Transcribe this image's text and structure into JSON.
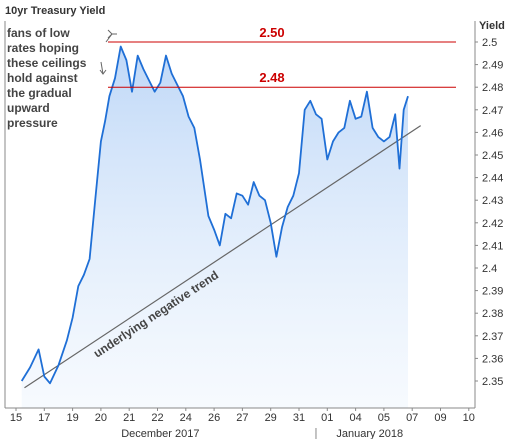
{
  "chart_data": {
    "type": "area",
    "title": "10yr Treasury Yield",
    "ylabel": "Yield",
    "x_ticks": [
      "15",
      "17",
      "19",
      "20",
      "21",
      "22",
      "24",
      "26",
      "27",
      "29",
      "31",
      "01",
      "04",
      "05",
      "07",
      "09",
      "10"
    ],
    "month_labels": [
      "December 2017",
      "January 2018"
    ],
    "y_ticks": [
      "2.35",
      "2.36",
      "2.37",
      "2.38",
      "2.39",
      "2.4",
      "2.41",
      "2.42",
      "2.43",
      "2.44",
      "2.45",
      "2.46",
      "2.47",
      "2.48",
      "2.49",
      "2.5"
    ],
    "ylim": [
      2.345,
      2.506
    ],
    "x_range": [
      0,
      16
    ],
    "series": [
      {
        "x": [
          0.2,
          0.5,
          0.8,
          1.0,
          1.2,
          1.5,
          1.8,
          2.0,
          2.2,
          2.4,
          2.6,
          2.8,
          3.0,
          3.15,
          3.3,
          3.5,
          3.7,
          3.9,
          4.1,
          4.3,
          4.5,
          4.7,
          4.9,
          5.1,
          5.3,
          5.5,
          5.7,
          5.9,
          6.1,
          6.3,
          6.5,
          6.8,
          7.0,
          7.2,
          7.4,
          7.6,
          7.8,
          8.0,
          8.2,
          8.4,
          8.6,
          8.8,
          9.0,
          9.2,
          9.4,
          9.6,
          9.8,
          10.0,
          10.2,
          10.4,
          10.6,
          10.8,
          11.0,
          11.2,
          11.4,
          11.6,
          11.8,
          12.0,
          12.2,
          12.4,
          12.6,
          12.8,
          13.0,
          13.2,
          13.4,
          13.55,
          13.7,
          13.85
        ],
        "values": [
          2.35,
          2.356,
          2.364,
          2.352,
          2.349,
          2.357,
          2.368,
          2.378,
          2.392,
          2.397,
          2.404,
          2.43,
          2.456,
          2.465,
          2.476,
          2.484,
          2.498,
          2.492,
          2.478,
          2.494,
          2.488,
          2.483,
          2.478,
          2.482,
          2.494,
          2.486,
          2.481,
          2.476,
          2.467,
          2.462,
          2.448,
          2.423,
          2.417,
          2.41,
          2.424,
          2.422,
          2.433,
          2.432,
          2.428,
          2.438,
          2.432,
          2.43,
          2.42,
          2.405,
          2.418,
          2.427,
          2.432,
          2.442,
          2.47,
          2.474,
          2.468,
          2.466,
          2.448,
          2.456,
          2.46,
          2.462,
          2.474,
          2.466,
          2.467,
          2.478,
          2.462,
          2.458,
          2.456,
          2.458,
          2.468,
          2.444,
          2.47,
          2.476
        ],
        "color": "#1f6fd6"
      }
    ],
    "levels": [
      {
        "value": 2.5,
        "label": "2.50",
        "color": "#cc0000"
      },
      {
        "value": 2.48,
        "label": "2.48",
        "color": "#cc0000"
      }
    ],
    "trend": {
      "x": [
        0.3,
        14.3
      ],
      "values": [
        2.347,
        2.463
      ],
      "label": "underlying negative trend",
      "color": "#666666"
    },
    "note": {
      "lines": [
        "fans of low",
        "rates hoping",
        "these ceilings",
        "hold against",
        "the gradual",
        "upward",
        "pressure"
      ]
    },
    "grid": false,
    "legend": "none"
  }
}
